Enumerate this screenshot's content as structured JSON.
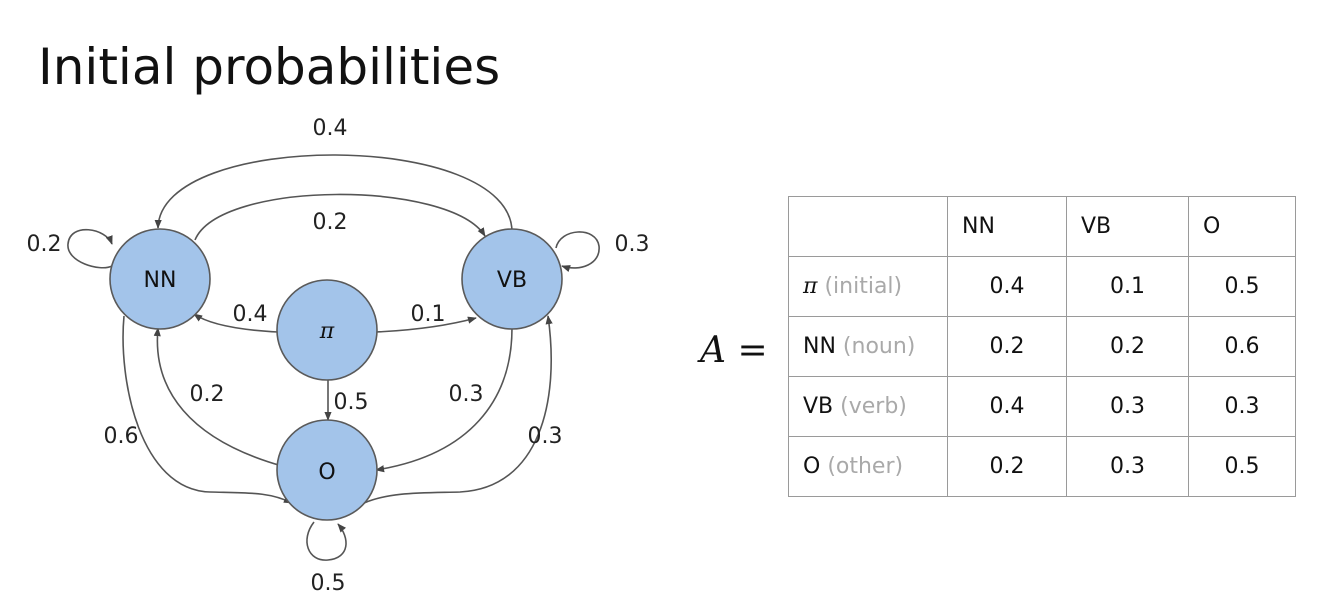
{
  "title": "Initial probabilities",
  "diagram": {
    "nodes": {
      "nn": {
        "label": "NN",
        "color": "#a3c4ea"
      },
      "vb": {
        "label": "VB",
        "color": "#a3c4ea"
      },
      "pi": {
        "label": "π",
        "color": "#a3c4ea"
      },
      "o": {
        "label": "O",
        "color": "#a3c4ea"
      }
    },
    "edges": {
      "vb_to_nn": "0.4",
      "nn_to_vb": "0.2",
      "nn_self": "0.2",
      "vb_self": "0.3",
      "pi_to_nn": "0.4",
      "pi_to_vb": "0.1",
      "pi_to_o": "0.5",
      "o_to_nn": "0.2",
      "vb_to_o": "0.3",
      "nn_to_o": "0.6",
      "o_to_vb": "0.3",
      "o_self": "0.5"
    }
  },
  "matrix": {
    "label_var": "A",
    "label_eq": " =",
    "columns": [
      "",
      "NN",
      "VB",
      "O"
    ],
    "rows": [
      {
        "tag": "π",
        "tag_style": "pi",
        "desc": " (initial)",
        "values": [
          "0.4",
          "0.1",
          "0.5"
        ]
      },
      {
        "tag": "NN",
        "tag_style": "plain",
        "desc": " (noun)",
        "values": [
          "0.2",
          "0.2",
          "0.6"
        ]
      },
      {
        "tag": "VB",
        "tag_style": "plain",
        "desc": " (verb)",
        "values": [
          "0.4",
          "0.3",
          "0.3"
        ]
      },
      {
        "tag": "O",
        "tag_style": "plain",
        "desc": " (other)",
        "values": [
          "0.2",
          "0.3",
          "0.5"
        ]
      }
    ]
  }
}
